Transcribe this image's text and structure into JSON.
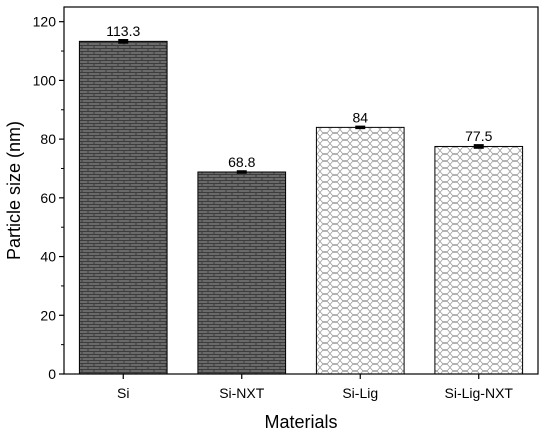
{
  "chart_data": {
    "type": "bar",
    "title": "",
    "xlabel": "Materials",
    "ylabel": "Particle size (nm)",
    "categories": [
      "Si",
      "Si-NXT",
      "Si-Lig",
      "Si-Lig-NXT"
    ],
    "values": [
      113.3,
      68.8,
      84,
      77.5
    ],
    "value_labels": [
      "113.3",
      "68.8",
      "84",
      "77.5"
    ],
    "errors": [
      0.8,
      0.6,
      0.6,
      0.8
    ],
    "fill_styles": [
      "dark-brick",
      "dark-brick",
      "light-hex",
      "light-hex"
    ],
    "ylim": [
      0,
      125
    ],
    "yticks": [
      0,
      20,
      40,
      60,
      80,
      100,
      120
    ],
    "grid": false,
    "legend": "none"
  }
}
